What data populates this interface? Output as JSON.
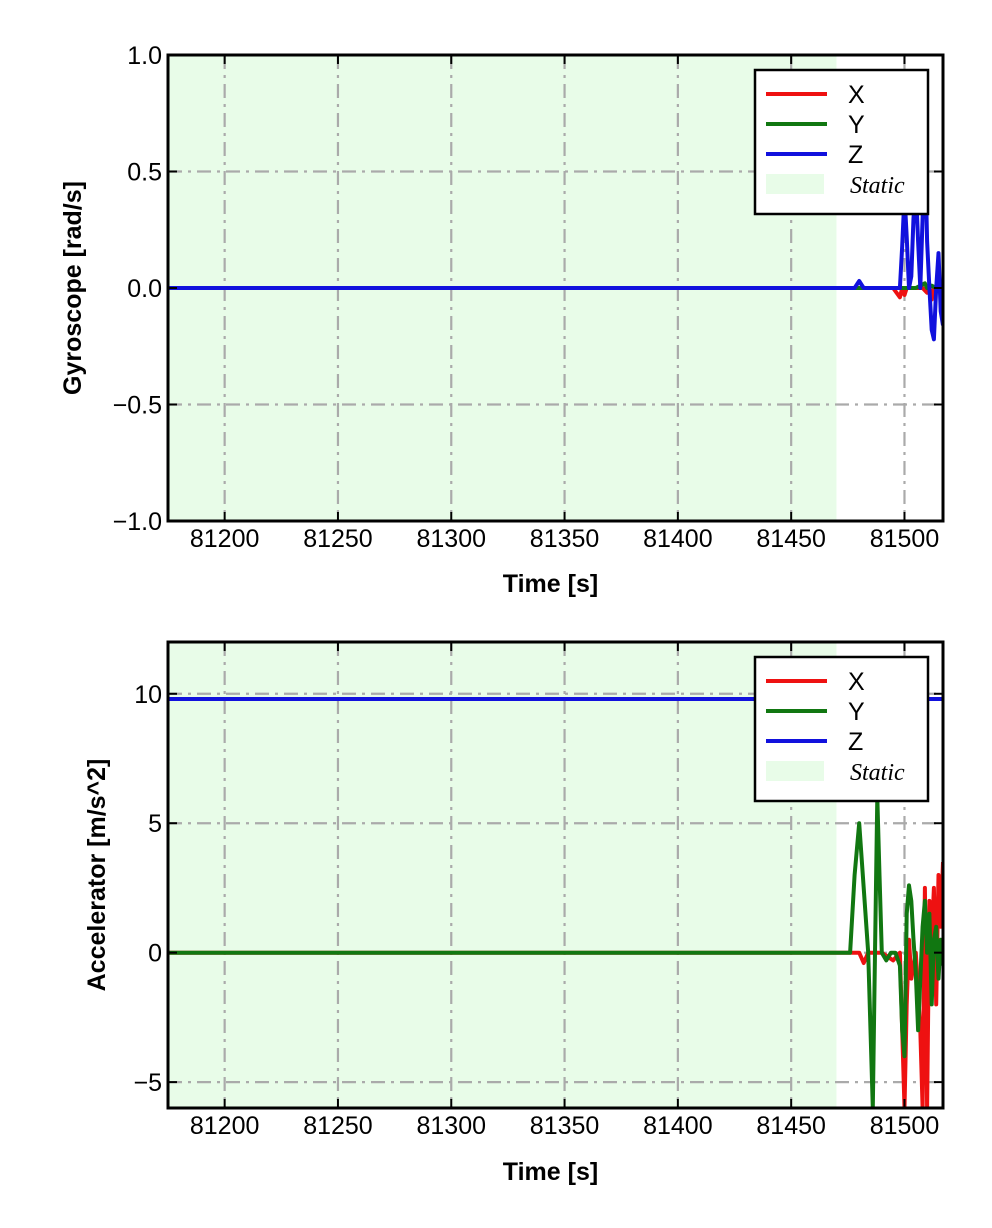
{
  "colors": {
    "X": "#ee1111",
    "Y": "#117711",
    "Z": "#1111dd",
    "static": "#e8fce8",
    "grid": "#aaaaaa"
  },
  "chart_data": [
    {
      "type": "line",
      "xlabel": "Time [s]",
      "ylabel": "Gyroscope [rad/s]",
      "xlim": [
        81175,
        81517
      ],
      "ylim": [
        -1.0,
        1.0
      ],
      "grid": true,
      "grid_style": "dash-dot",
      "legend_placement": "top-right",
      "xticks": [
        81200,
        81250,
        81300,
        81350,
        81400,
        81450,
        81500
      ],
      "xtick_labels": [
        "81200",
        "81250",
        "81300",
        "81350",
        "81400",
        "81450",
        "81500"
      ],
      "yticks": [
        1.0,
        0.5,
        0.0,
        -0.5,
        -1.0
      ],
      "ytick_labels": [
        "1.0",
        "0.5",
        "0.0",
        "−0.5",
        "−1.0"
      ],
      "static_region": {
        "label": "Static",
        "x": [
          81175,
          81470
        ]
      },
      "series": [
        {
          "name": "X",
          "x": [
            81175,
            81300,
            81470,
            81480,
            81495,
            81498,
            81499,
            81500,
            81501,
            81502,
            81505,
            81508,
            81510,
            81511,
            81512,
            81513,
            81514,
            81515,
            81516,
            81517
          ],
          "y": [
            0.0,
            0.0,
            0.0,
            0.0,
            0.0,
            -0.04,
            0.0,
            -0.03,
            0.0,
            0.0,
            0.0,
            0.0,
            -0.02,
            0.0,
            -0.05,
            0.0,
            0.0,
            0.0,
            0.0,
            0.0
          ]
        },
        {
          "name": "Y",
          "x": [
            81175,
            81300,
            81470,
            81480,
            81500,
            81505,
            81509,
            81510,
            81512,
            81514,
            81516,
            81517
          ],
          "y": [
            0.0,
            0.0,
            0.0,
            0.0,
            0.0,
            0.0,
            0.02,
            0.0,
            0.01,
            0.0,
            0.0,
            0.0
          ]
        },
        {
          "name": "Z",
          "x": [
            81175,
            81300,
            81470,
            81478,
            81479,
            81480,
            81481,
            81482,
            81498,
            81499,
            81500,
            81501,
            81502,
            81503,
            81504,
            81505,
            81506,
            81507,
            81508,
            81509,
            81510,
            81511,
            81512,
            81513,
            81514,
            81515,
            81516,
            81517
          ],
          "y": [
            0.0,
            0.0,
            0.0,
            0.0,
            0.015,
            0.03,
            0.015,
            0.0,
            0.0,
            0.18,
            0.4,
            0.22,
            0.0,
            0.05,
            0.3,
            0.44,
            0.2,
            0.0,
            0.3,
            0.63,
            0.2,
            0.0,
            -0.18,
            -0.22,
            0.0,
            0.15,
            -0.1,
            -0.16
          ]
        }
      ]
    },
    {
      "type": "line",
      "xlabel": "Time [s]",
      "ylabel": "Accelerator [m/s^2]",
      "xlim": [
        81175,
        81517
      ],
      "ylim": [
        -6.0,
        12.0
      ],
      "grid": true,
      "grid_style": "dash-dot",
      "legend_placement": "top-right",
      "xticks": [
        81200,
        81250,
        81300,
        81350,
        81400,
        81450,
        81500
      ],
      "xtick_labels": [
        "81200",
        "81250",
        "81300",
        "81350",
        "81400",
        "81450",
        "81500"
      ],
      "yticks": [
        10,
        5,
        0,
        -5
      ],
      "ytick_labels": [
        "10",
        "5",
        "0",
        "−5"
      ],
      "static_region": {
        "label": "Static",
        "x": [
          81175,
          81470
        ]
      },
      "series": [
        {
          "name": "X",
          "x": [
            81175,
            81300,
            81470,
            81480,
            81482,
            81484,
            81490,
            81495,
            81498,
            81500,
            81501,
            81502,
            81503,
            81505,
            81507,
            81508,
            81509,
            81510,
            81511,
            81512,
            81513,
            81514,
            81515,
            81516,
            81517
          ],
          "y": [
            0.0,
            0.0,
            0.0,
            0.0,
            -0.4,
            0.0,
            0.0,
            -0.3,
            0.0,
            -6.0,
            -2.0,
            0.5,
            -1.0,
            0.0,
            -3.0,
            -6.0,
            2.5,
            -6.0,
            2.0,
            0.5,
            2.5,
            -2.0,
            3.0,
            1.0,
            3.5
          ]
        },
        {
          "name": "Y",
          "x": [
            81175,
            81300,
            81470,
            81476,
            81478,
            81480,
            81482,
            81484,
            81485,
            81486,
            81487,
            81488,
            81489,
            81490,
            81492,
            81494,
            81496,
            81498,
            81499,
            81500,
            81501,
            81502,
            81503,
            81504,
            81505,
            81506,
            81508,
            81509,
            81510,
            81511,
            81512,
            81513,
            81514,
            81515,
            81516,
            81517
          ],
          "y": [
            0.0,
            0.0,
            0.0,
            0.0,
            3.0,
            5.0,
            2.5,
            0.0,
            -3.0,
            -6.0,
            0.0,
            6.0,
            3.0,
            0.0,
            -0.3,
            0.0,
            0.0,
            -0.5,
            -3.0,
            -4.0,
            1.5,
            2.6,
            2.0,
            0.5,
            -0.8,
            -3.0,
            1.0,
            2.0,
            0.0,
            1.5,
            -2.0,
            0.5,
            1.0,
            -1.0,
            0.5,
            -0.5
          ]
        },
        {
          "name": "Z",
          "x": [
            81175,
            81300,
            81470,
            81500,
            81517
          ],
          "y": [
            9.8,
            9.8,
            9.8,
            9.8,
            9.8
          ]
        }
      ]
    }
  ]
}
